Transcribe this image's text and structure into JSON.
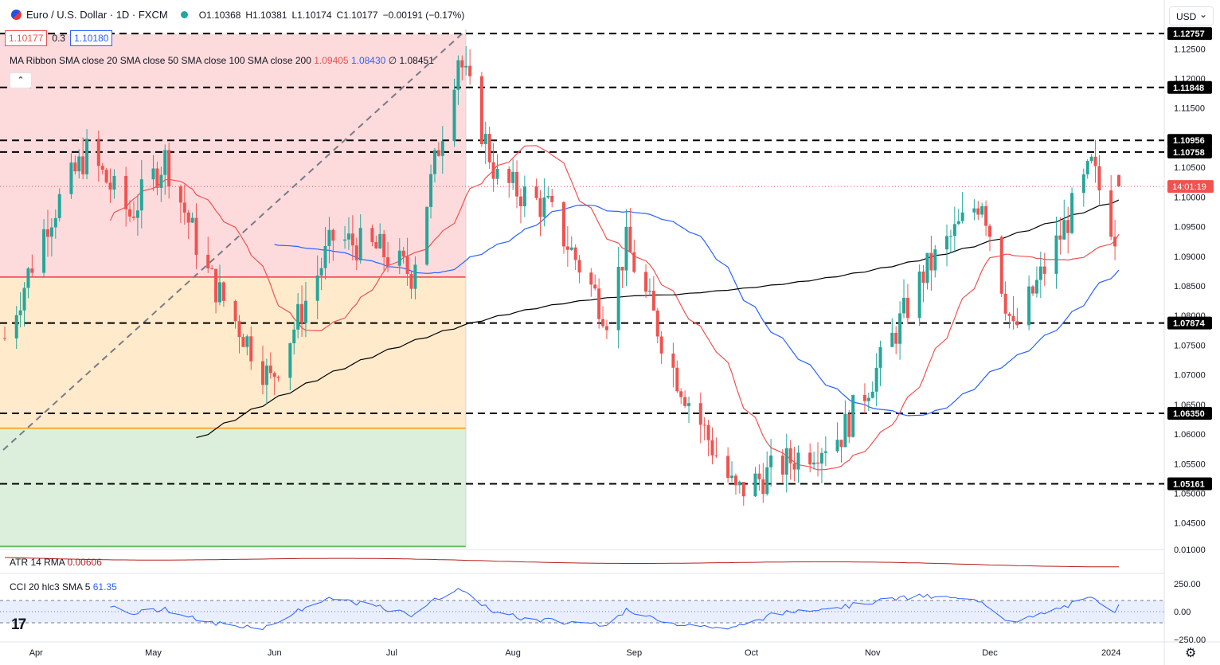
{
  "header": {
    "symbol": "Euro / U.S. Dollar · 1D · FXCM",
    "open": "O1.10368",
    "high": "H1.10381",
    "low": "L1.10174",
    "close": "C1.10177",
    "change": "−0.00191 (−0.17%)",
    "bid": "1.10177",
    "spread": "0.3",
    "ask": "1.10180"
  },
  "indicator": {
    "ma_label": "MA Ribbon SMA close 20 SMA close 50 SMA close 100 SMA close 200",
    "ma20": "1.09405",
    "ma50": "1.08430",
    "ma100": "∅",
    "ma200": "1.08451",
    "collapse": "⌃"
  },
  "atr": {
    "label": "ATR 14 RMA",
    "value": "0.00606"
  },
  "cci": {
    "label": "CCI 20 hlc3 SMA 5",
    "value": "61.35"
  },
  "currency_selector": "USD",
  "logo": "17",
  "settings_icon": "⚙",
  "colors": {
    "up": "#26a69a",
    "down": "#ef5350",
    "sma20": "#ef5350",
    "sma50": "#2962ff",
    "sma200": "#000000",
    "atr": "#b71c1c",
    "cci": "#2962ff"
  },
  "chart_data": {
    "type": "candlestick",
    "x_labels": [
      "Apr",
      "May",
      "Jun",
      "Jul",
      "Aug",
      "Sep",
      "Oct",
      "Nov",
      "Dec",
      "2024"
    ],
    "y_ticks": [
      "1.12500",
      "1.12000",
      "1.11500",
      "1.11000",
      "1.10500",
      "1.10000",
      "1.09500",
      "1.09000",
      "1.08500",
      "1.08000",
      "1.07500",
      "1.07000",
      "1.06500",
      "1.06000",
      "1.05500",
      "1.05000",
      "1.04500"
    ],
    "levels": [
      "1.12757",
      "1.11848",
      "1.10956",
      "1.10758",
      "1.07874",
      "1.06350",
      "1.05161"
    ],
    "current_price": "1.10177",
    "countdown": "14:01:19",
    "ylim": [
      1.0408,
      1.1292
    ],
    "anchors": [
      [
        "2023-03-24",
        1.0762
      ],
      [
        "2023-04-04",
        1.096
      ],
      [
        "2023-04-14",
        1.1075
      ],
      [
        "2023-04-25",
        1.097
      ],
      [
        "2023-05-04",
        1.1065
      ],
      [
        "2023-05-15",
        1.087
      ],
      [
        "2023-05-31",
        1.069
      ],
      [
        "2023-06-16",
        1.093
      ],
      [
        "2023-06-28",
        1.091
      ],
      [
        "2023-07-06",
        1.087
      ],
      [
        "2023-07-18",
        1.124
      ],
      [
        "2023-07-28",
        1.103
      ],
      [
        "2023-08-10",
        1.098
      ],
      [
        "2023-08-25",
        1.08
      ],
      [
        "2023-08-30",
        1.092
      ],
      [
        "2023-09-11",
        1.071
      ],
      [
        "2023-09-27",
        1.05
      ],
      [
        "2023-10-12",
        1.056
      ],
      [
        "2023-10-24",
        1.06
      ],
      [
        "2023-11-03",
        1.072
      ],
      [
        "2023-11-14",
        1.087
      ],
      [
        "2023-11-29",
        1.1
      ],
      [
        "2023-12-07",
        1.077
      ],
      [
        "2023-12-18",
        1.092
      ],
      [
        "2023-12-27",
        1.105
      ],
      [
        "2024-01-03",
        1.092
      ]
    ],
    "fib_zones": [
      {
        "from": 1.1275,
        "to": 1.0865,
        "color": "rgba(242,54,69,0.18)"
      },
      {
        "from": 1.0865,
        "to": 1.061,
        "color": "rgba(255,152,0,0.20)"
      },
      {
        "from": 1.061,
        "to": 1.0408,
        "color": "rgba(76,175,80,0.20)"
      }
    ],
    "atr_range": "0.01000",
    "cci_ticks": [
      "250.00",
      "0.00",
      "−250.00"
    ]
  }
}
